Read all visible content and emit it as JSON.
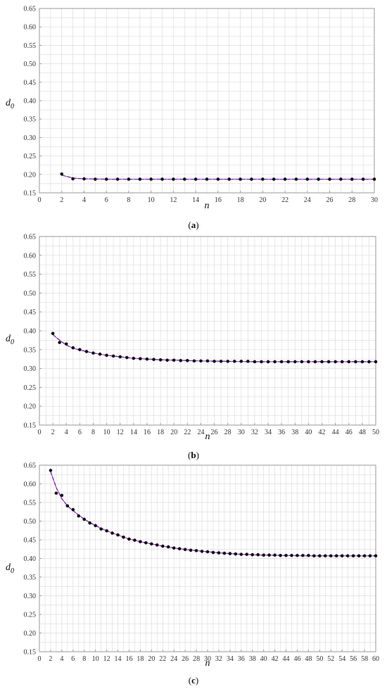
{
  "chart_data": [
    {
      "type": "scatter",
      "panel_label": "a",
      "xlabel": "n",
      "ylabel": "d",
      "ylabel_subscript": "0",
      "xlim": [
        0,
        30
      ],
      "ylim": [
        0.15,
        0.65
      ],
      "x_ticks": [
        0,
        2,
        4,
        6,
        8,
        10,
        12,
        14,
        16,
        18,
        20,
        22,
        24,
        26,
        28,
        30
      ],
      "x_tick_labels": [
        "0",
        "2",
        "4",
        "6",
        "8",
        "10",
        "12",
        "14",
        "16",
        "18",
        "20",
        "22",
        "24",
        "26",
        "28",
        "30"
      ],
      "y_ticks": [
        0.15,
        0.2,
        0.25,
        0.3,
        0.35,
        0.4,
        0.45,
        0.5,
        0.55,
        0.6,
        0.65
      ],
      "y_tick_labels": [
        "0.15",
        "0.20",
        "0.25",
        "0.30",
        "0.35",
        "0.40",
        "0.45",
        "0.50",
        "0.55",
        "0.60",
        "0.65"
      ],
      "grid": true,
      "series": [
        {
          "kind": "points",
          "color": "#111111",
          "x": [
            2,
            3,
            4,
            5,
            6,
            7,
            8,
            9,
            10,
            11,
            12,
            13,
            14,
            15,
            16,
            17,
            18,
            19,
            20,
            21,
            22,
            23,
            24,
            25,
            26,
            27,
            28,
            29,
            30
          ],
          "y": [
            0.201,
            0.188,
            0.188,
            0.187,
            0.187,
            0.187,
            0.187,
            0.187,
            0.187,
            0.187,
            0.187,
            0.187,
            0.187,
            0.187,
            0.187,
            0.187,
            0.187,
            0.187,
            0.187,
            0.187,
            0.187,
            0.187,
            0.187,
            0.187,
            0.187,
            0.187,
            0.187,
            0.187,
            0.187
          ]
        },
        {
          "kind": "fit-curve",
          "color": "#cc33cc",
          "x": [
            2,
            3,
            4,
            6,
            8,
            10,
            14,
            18,
            22,
            26,
            30
          ],
          "y": [
            0.198,
            0.19,
            0.188,
            0.187,
            0.187,
            0.187,
            0.187,
            0.187,
            0.187,
            0.187,
            0.187
          ]
        },
        {
          "kind": "dashed-curve",
          "color": "#6a2bbf",
          "x": [
            2,
            3,
            4,
            6,
            8,
            10,
            14,
            18,
            22,
            26,
            30
          ],
          "y": [
            0.198,
            0.19,
            0.188,
            0.187,
            0.187,
            0.187,
            0.187,
            0.187,
            0.187,
            0.187,
            0.187
          ]
        }
      ]
    },
    {
      "type": "scatter",
      "panel_label": "b",
      "xlabel": "n",
      "ylabel": "d",
      "ylabel_subscript": "0",
      "xlim": [
        0,
        50
      ],
      "ylim": [
        0.15,
        0.65
      ],
      "x_ticks": [
        0,
        2,
        4,
        6,
        8,
        10,
        12,
        14,
        16,
        18,
        20,
        22,
        24,
        26,
        28,
        30,
        32,
        34,
        36,
        38,
        40,
        42,
        44,
        46,
        48,
        50
      ],
      "x_tick_labels": [
        "0",
        "2",
        "4",
        "6",
        "8",
        "10",
        "12",
        "14",
        "16",
        "18",
        "20",
        "22",
        "24",
        "26",
        "28",
        "30",
        "32",
        "34",
        "36",
        "38",
        "40",
        "42",
        "44",
        "46",
        "48",
        "50"
      ],
      "y_ticks": [
        0.15,
        0.2,
        0.25,
        0.3,
        0.35,
        0.4,
        0.45,
        0.5,
        0.55,
        0.6,
        0.65
      ],
      "y_tick_labels": [
        "0.15",
        "0.20",
        "0.25",
        "0.30",
        "0.35",
        "0.40",
        "0.45",
        "0.50",
        "0.55",
        "0.60",
        "0.65"
      ],
      "grid": true,
      "series": [
        {
          "kind": "points",
          "color": "#111111",
          "x": [
            2,
            3,
            4,
            5,
            6,
            7,
            8,
            9,
            10,
            11,
            12,
            13,
            14,
            15,
            16,
            17,
            18,
            19,
            20,
            21,
            22,
            23,
            24,
            25,
            26,
            27,
            28,
            29,
            30,
            31,
            32,
            33,
            34,
            35,
            36,
            37,
            38,
            39,
            40,
            41,
            42,
            43,
            44,
            45,
            46,
            47,
            48,
            49,
            50
          ],
          "y": [
            0.393,
            0.369,
            0.365,
            0.355,
            0.35,
            0.345,
            0.341,
            0.338,
            0.335,
            0.333,
            0.331,
            0.329,
            0.327,
            0.326,
            0.325,
            0.324,
            0.323,
            0.322,
            0.322,
            0.321,
            0.321,
            0.32,
            0.32,
            0.32,
            0.319,
            0.319,
            0.319,
            0.319,
            0.319,
            0.319,
            0.318,
            0.318,
            0.318,
            0.318,
            0.318,
            0.318,
            0.318,
            0.318,
            0.318,
            0.318,
            0.318,
            0.318,
            0.318,
            0.318,
            0.318,
            0.318,
            0.318,
            0.318,
            0.318
          ]
        },
        {
          "kind": "fit-curve",
          "color": "#cc33cc",
          "x": [
            2,
            3,
            4,
            5,
            6,
            8,
            10,
            12,
            14,
            16,
            18,
            20,
            24,
            28,
            32,
            36,
            40,
            44,
            48,
            50
          ],
          "y": [
            0.39,
            0.375,
            0.362,
            0.354,
            0.349,
            0.341,
            0.335,
            0.331,
            0.327,
            0.325,
            0.323,
            0.322,
            0.32,
            0.319,
            0.318,
            0.318,
            0.318,
            0.318,
            0.318,
            0.318
          ]
        },
        {
          "kind": "dashed-curve",
          "color": "#6a2bbf",
          "x": [
            2,
            3,
            4,
            5,
            6,
            8,
            10,
            12,
            14,
            16,
            18,
            20,
            24,
            28,
            32,
            36,
            40,
            44,
            48,
            50
          ],
          "y": [
            0.39,
            0.375,
            0.362,
            0.354,
            0.349,
            0.341,
            0.335,
            0.331,
            0.327,
            0.325,
            0.323,
            0.322,
            0.32,
            0.319,
            0.318,
            0.318,
            0.318,
            0.318,
            0.318,
            0.318
          ]
        }
      ]
    },
    {
      "type": "scatter",
      "panel_label": "c",
      "xlabel": "n",
      "ylabel": "d",
      "ylabel_subscript": "0",
      "xlim": [
        0,
        60
      ],
      "ylim": [
        0.15,
        0.65
      ],
      "x_ticks": [
        0,
        2,
        4,
        6,
        8,
        10,
        12,
        14,
        16,
        18,
        20,
        22,
        24,
        26,
        28,
        30,
        32,
        34,
        36,
        38,
        40,
        42,
        44,
        46,
        48,
        50,
        52,
        54,
        56,
        58,
        60
      ],
      "x_tick_labels": [
        "0",
        "2",
        "4",
        "6",
        "8",
        "10",
        "12",
        "14",
        "16",
        "18",
        "20",
        "22",
        "24",
        "26",
        "28",
        "30",
        "32",
        "34",
        "36",
        "38",
        "40",
        "42",
        "44",
        "46",
        "48",
        "50",
        "52",
        "54",
        "56",
        "58",
        "60"
      ],
      "y_ticks": [
        0.15,
        0.2,
        0.25,
        0.3,
        0.35,
        0.4,
        0.45,
        0.5,
        0.55,
        0.6,
        0.65
      ],
      "y_tick_labels": [
        "0.15",
        "0.20",
        "0.25",
        "0.30",
        "0.35",
        "0.40",
        "0.45",
        "0.50",
        "0.55",
        "0.60",
        "0.65"
      ],
      "grid": true,
      "series": [
        {
          "kind": "points",
          "color": "#111111",
          "x": [
            2,
            3,
            4,
            5,
            6,
            7,
            8,
            9,
            10,
            11,
            12,
            13,
            14,
            15,
            16,
            17,
            18,
            19,
            20,
            21,
            22,
            23,
            24,
            25,
            26,
            27,
            28,
            29,
            30,
            31,
            32,
            33,
            34,
            35,
            36,
            37,
            38,
            39,
            40,
            41,
            42,
            43,
            44,
            45,
            46,
            47,
            48,
            49,
            50,
            51,
            52,
            53,
            54,
            55,
            56,
            57,
            58,
            59,
            60
          ],
          "y": [
            0.636,
            0.575,
            0.569,
            0.541,
            0.531,
            0.514,
            0.505,
            0.495,
            0.488,
            0.479,
            0.474,
            0.468,
            0.463,
            0.457,
            0.452,
            0.449,
            0.445,
            0.442,
            0.439,
            0.436,
            0.433,
            0.431,
            0.428,
            0.426,
            0.424,
            0.422,
            0.421,
            0.419,
            0.418,
            0.416,
            0.415,
            0.414,
            0.413,
            0.412,
            0.411,
            0.411,
            0.41,
            0.41,
            0.409,
            0.409,
            0.409,
            0.408,
            0.408,
            0.408,
            0.408,
            0.408,
            0.408,
            0.407,
            0.407,
            0.407,
            0.407,
            0.407,
            0.407,
            0.407,
            0.407,
            0.407,
            0.407,
            0.407,
            0.407
          ]
        },
        {
          "kind": "fit-curve",
          "color": "#cc33cc",
          "x": [
            2,
            3,
            4,
            5,
            6,
            8,
            10,
            12,
            14,
            16,
            18,
            20,
            22,
            24,
            26,
            28,
            30,
            32,
            34,
            36,
            38,
            40,
            44,
            48,
            52,
            56,
            60
          ],
          "y": [
            0.633,
            0.59,
            0.56,
            0.541,
            0.528,
            0.505,
            0.488,
            0.474,
            0.463,
            0.452,
            0.445,
            0.439,
            0.433,
            0.428,
            0.424,
            0.421,
            0.418,
            0.415,
            0.413,
            0.411,
            0.41,
            0.409,
            0.408,
            0.407,
            0.407,
            0.407,
            0.407
          ]
        },
        {
          "kind": "dashed-curve",
          "color": "#6a2bbf",
          "x": [
            2,
            3,
            4,
            5,
            6,
            8,
            10,
            12,
            14,
            16,
            18,
            20,
            22,
            24,
            26,
            28,
            30,
            32,
            34,
            36,
            38,
            40,
            44,
            48,
            52,
            56,
            60
          ],
          "y": [
            0.633,
            0.59,
            0.56,
            0.541,
            0.528,
            0.505,
            0.488,
            0.474,
            0.463,
            0.452,
            0.445,
            0.439,
            0.433,
            0.428,
            0.424,
            0.421,
            0.418,
            0.415,
            0.413,
            0.411,
            0.41,
            0.409,
            0.408,
            0.407,
            0.407,
            0.407,
            0.407
          ]
        }
      ]
    }
  ],
  "colors": {
    "grid": "#dddddd",
    "frame": "#9a9a9a",
    "points": "#111111",
    "fit_solid": "#cc33cc",
    "fit_dashed": "#6a2bbf"
  }
}
